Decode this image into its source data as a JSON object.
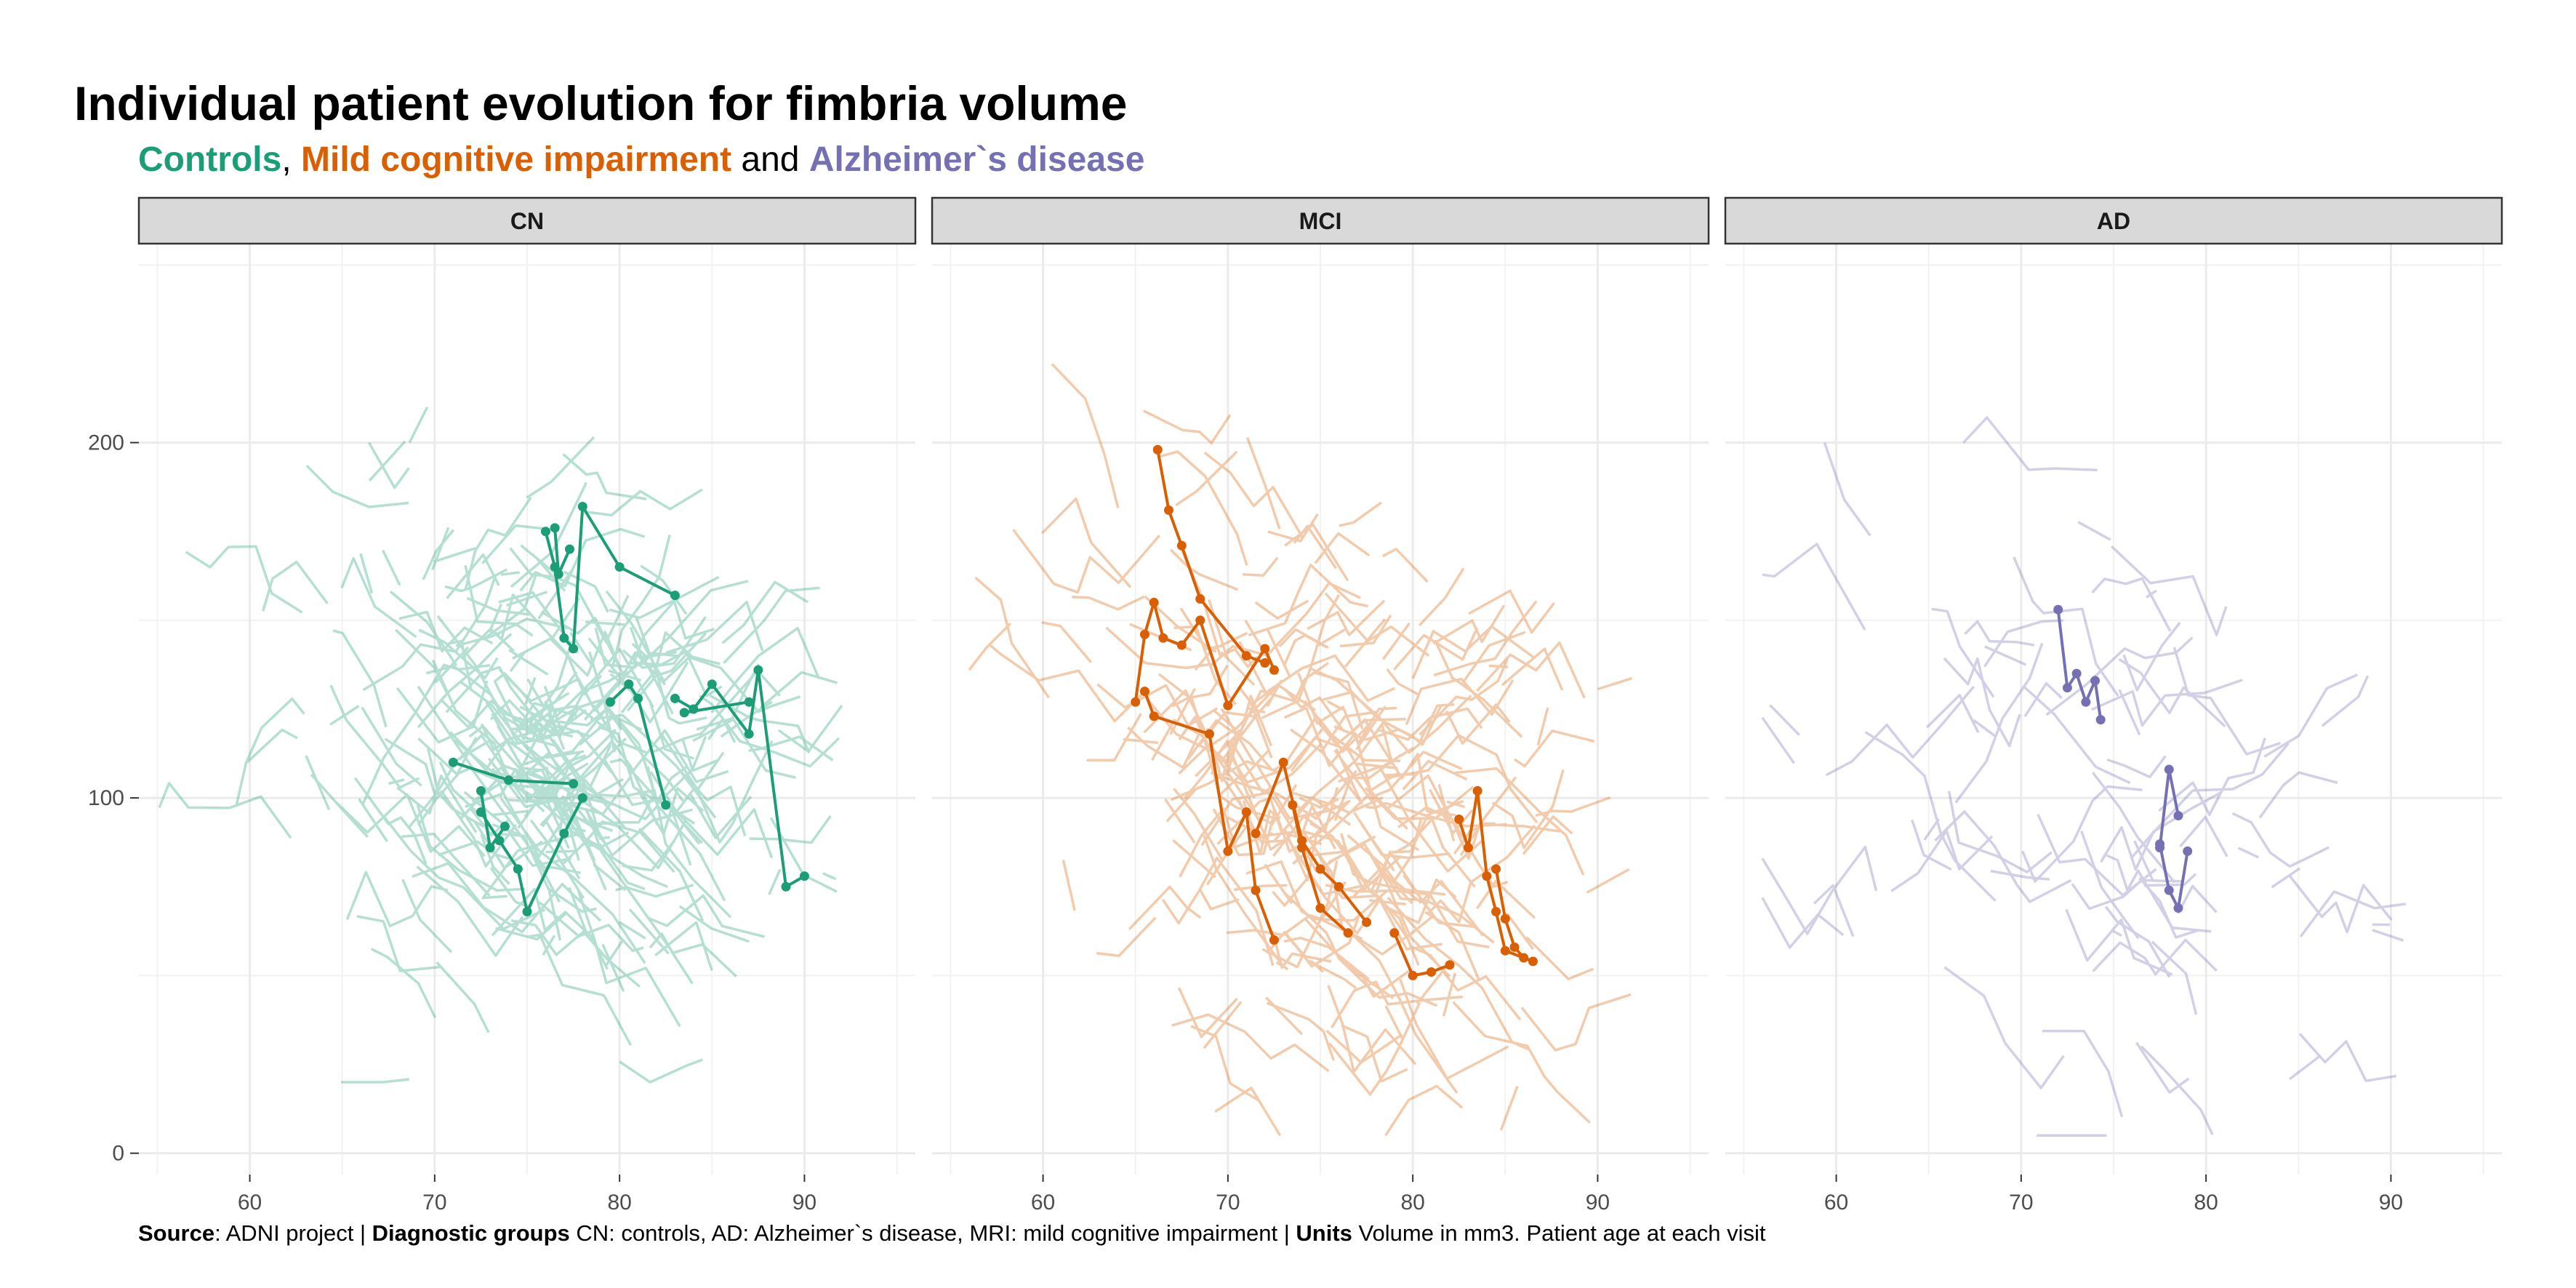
{
  "header": {
    "title": "Individual patient evolution for fimbria volume",
    "subtitle": {
      "controls": "Controls",
      "sep1": ", ",
      "mci": "Mild cognitive impairment",
      "sep2": " and ",
      "ad": "Alzheimer`s disease"
    }
  },
  "caption": {
    "source_label": "Source",
    "source_text": ": ADNI project | ",
    "groups_label": "Diagnostic groups",
    "groups_text": " CN: controls, AD: Alzheimer`s disease, MRI: mild cognitive impairment | ",
    "units_label": "Units",
    "units_text": " Volume in mm3. Patient age at each visit"
  },
  "colors": {
    "CN": "#1b9e77",
    "MCI": "#d95f02",
    "AD": "#7570b3",
    "strip_fill": "#d9d9d9",
    "grid": "#ebebeb"
  },
  "chart_data": {
    "type": "line",
    "title": "Individual patient evolution for fimbria volume",
    "xlabel": "",
    "ylabel": "",
    "xlim": [
      54,
      96
    ],
    "ylim": [
      -6,
      256
    ],
    "x_ticks": [
      60,
      70,
      80,
      90
    ],
    "y_ticks": [
      0,
      100,
      200
    ],
    "grid": true,
    "facets": [
      "CN",
      "MCI",
      "AD"
    ],
    "highlighted": {
      "CN": [
        [
          [
            71.0,
            110
          ],
          [
            74.0,
            105
          ],
          [
            77.5,
            104
          ]
        ],
        [
          [
            72.5,
            96
          ],
          [
            73.5,
            88
          ],
          [
            74.5,
            80
          ],
          [
            75.0,
            68
          ],
          [
            77.0,
            90
          ],
          [
            78.0,
            100
          ]
        ],
        [
          [
            72.5,
            102
          ],
          [
            73.0,
            86
          ],
          [
            73.8,
            92
          ]
        ],
        [
          [
            76.0,
            175
          ],
          [
            76.5,
            165
          ],
          [
            77.0,
            145
          ],
          [
            77.5,
            142
          ],
          [
            78.0,
            182
          ],
          [
            80.0,
            165
          ],
          [
            83.0,
            157
          ]
        ],
        [
          [
            76.5,
            176
          ],
          [
            76.7,
            163
          ],
          [
            77.3,
            170
          ]
        ],
        [
          [
            79.5,
            127
          ],
          [
            80.5,
            132
          ],
          [
            81.0,
            128
          ],
          [
            82.5,
            98
          ]
        ],
        [
          [
            83.0,
            128
          ],
          [
            84.0,
            125
          ],
          [
            85.0,
            132
          ],
          [
            87.0,
            118
          ],
          [
            87.5,
            136
          ],
          [
            89.0,
            75
          ],
          [
            90.0,
            78
          ]
        ],
        [
          [
            83.5,
            124
          ],
          [
            87.0,
            127
          ]
        ]
      ],
      "MCI": [
        [
          [
            66.2,
            198
          ],
          [
            66.8,
            181
          ],
          [
            67.5,
            171
          ],
          [
            68.5,
            156
          ],
          [
            71.0,
            140
          ],
          [
            72.0,
            138
          ]
        ],
        [
          [
            65.0,
            127
          ],
          [
            65.5,
            146
          ],
          [
            66.0,
            155
          ],
          [
            66.5,
            145
          ],
          [
            67.5,
            143
          ],
          [
            68.5,
            150
          ],
          [
            70.0,
            126
          ],
          [
            72.0,
            142
          ],
          [
            72.5,
            136
          ]
        ],
        [
          [
            65.5,
            130
          ],
          [
            66.0,
            123
          ],
          [
            69.0,
            118
          ],
          [
            70.0,
            85
          ],
          [
            71.0,
            96
          ],
          [
            71.5,
            74
          ],
          [
            72.5,
            60
          ]
        ],
        [
          [
            71.5,
            90
          ],
          [
            73.0,
            110
          ],
          [
            74.0,
            88
          ],
          [
            75.0,
            80
          ],
          [
            76.0,
            75
          ],
          [
            77.5,
            65
          ]
        ],
        [
          [
            73.5,
            98
          ],
          [
            74.0,
            86
          ],
          [
            75.0,
            69
          ],
          [
            76.5,
            62
          ]
        ],
        [
          [
            79.0,
            62
          ],
          [
            80.0,
            50
          ],
          [
            81.0,
            51
          ],
          [
            82.0,
            53
          ]
        ],
        [
          [
            82.5,
            94
          ],
          [
            83.0,
            86
          ],
          [
            83.5,
            102
          ],
          [
            84.0,
            78
          ],
          [
            84.5,
            68
          ],
          [
            85.0,
            57
          ],
          [
            86.5,
            54
          ]
        ],
        [
          [
            84.5,
            80
          ],
          [
            85.0,
            66
          ],
          [
            85.5,
            58
          ],
          [
            86.0,
            55
          ]
        ]
      ],
      "AD": [
        [
          [
            72.0,
            153
          ],
          [
            72.5,
            131
          ],
          [
            73.0,
            135
          ],
          [
            73.5,
            127
          ],
          [
            74.0,
            133
          ],
          [
            74.3,
            122
          ]
        ],
        [
          [
            77.5,
            86
          ],
          [
            78.0,
            108
          ],
          [
            78.5,
            95
          ]
        ],
        [
          [
            77.5,
            87
          ],
          [
            78.0,
            74
          ],
          [
            78.5,
            69
          ],
          [
            79.0,
            85
          ]
        ]
      ]
    },
    "background_trajectories": {
      "CN": {
        "count": 260,
        "x_range": [
          55,
          93
        ],
        "y_range": [
          20,
          210
        ]
      },
      "MCI": {
        "count": 230,
        "x_range": [
          56,
          92
        ],
        "y_range": [
          5,
          255
        ]
      },
      "AD": {
        "count": 75,
        "x_range": [
          56,
          91
        ],
        "y_range": [
          5,
          210
        ]
      }
    }
  }
}
